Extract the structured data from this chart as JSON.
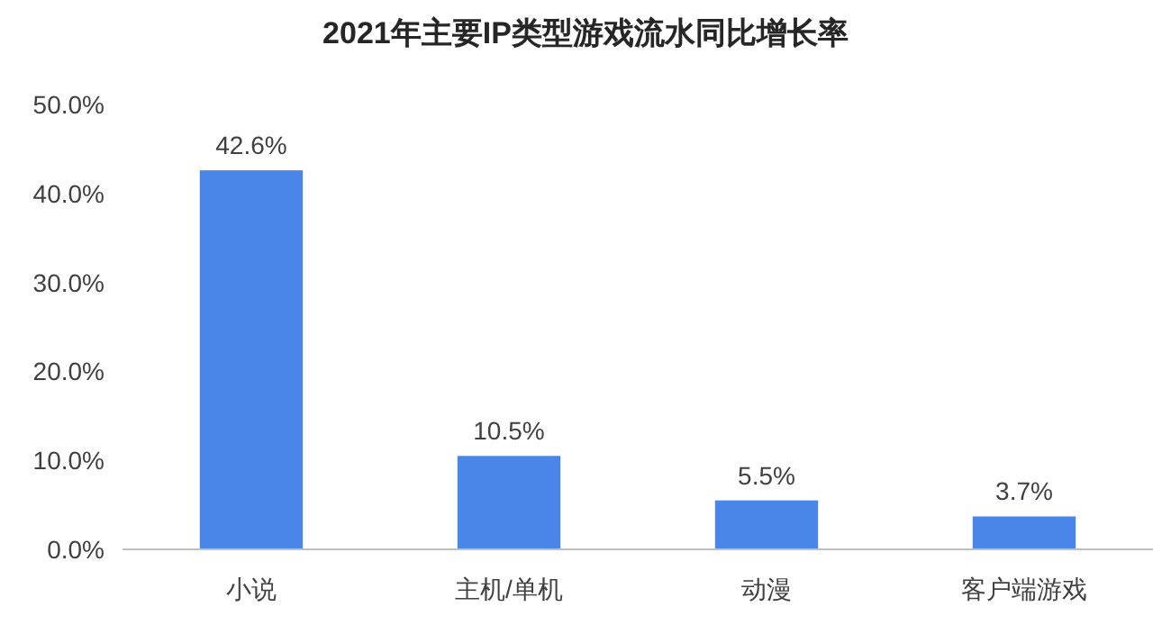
{
  "chart_data": {
    "type": "bar",
    "title": "2021年主要IP类型游戏流水同比增长率",
    "categories": [
      "小说",
      "主机/单机",
      "动漫",
      "客户端游戏"
    ],
    "values": [
      42.6,
      10.5,
      5.5,
      3.7
    ],
    "value_labels": [
      "42.6%",
      "10.5%",
      "5.5%",
      "3.7%"
    ],
    "color": "#4a86e8",
    "ylim": [
      0,
      50
    ],
    "yticks": [
      {
        "value": 0,
        "label": "0.0%"
      },
      {
        "value": 10,
        "label": "10.0%"
      },
      {
        "value": 20,
        "label": "20.0%"
      },
      {
        "value": 30,
        "label": "30.0%"
      },
      {
        "value": 40,
        "label": "40.0%"
      },
      {
        "value": 50,
        "label": "50.0%"
      }
    ],
    "grid": false
  }
}
